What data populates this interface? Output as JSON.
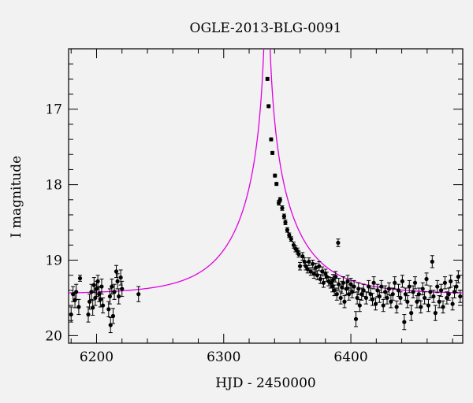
{
  "chart_data": {
    "type": "scatter",
    "title": "OGLE-2013-BLG-0091",
    "xlabel": "HJD - 2450000",
    "ylabel": "I magnitude",
    "xlim": [
      6178,
      6488
    ],
    "ylim": [
      16.2,
      20.1
    ],
    "y_inverted": true,
    "x_ticks": [
      6200,
      6300,
      6400
    ],
    "y_ticks": [
      17,
      18,
      19,
      20
    ],
    "grid": false,
    "colors": {
      "points": "#000000",
      "model": "#e000e0",
      "background": "#f2f2f2"
    },
    "model": {
      "t0": 6334.0,
      "u0": 0.00545,
      "tE": 50.0,
      "base_mag": 19.45,
      "fs": 1.0
    },
    "series": [
      {
        "points": [
          [
            6180.0,
            19.72,
            0.1
          ],
          [
            6181.5,
            19.45,
            0.1
          ],
          [
            6183.0,
            19.53,
            0.1
          ],
          [
            6184.0,
            19.42,
            0.1
          ],
          [
            6186.0,
            19.62,
            0.1
          ],
          [
            6187.0,
            19.24,
            0.04
          ],
          [
            6193.5,
            19.72,
            0.1
          ],
          [
            6194.5,
            19.55,
            0.1
          ],
          [
            6196.0,
            19.42,
            0.1
          ],
          [
            6197.0,
            19.63,
            0.1
          ],
          [
            6198.0,
            19.33,
            0.1
          ],
          [
            6199.0,
            19.5,
            0.1
          ],
          [
            6200.0,
            19.38,
            0.1
          ],
          [
            6201.0,
            19.28,
            0.08
          ],
          [
            6202.0,
            19.45,
            0.1
          ],
          [
            6203.0,
            19.52,
            0.1
          ],
          [
            6204.0,
            19.35,
            0.1
          ],
          [
            6205.0,
            19.6,
            0.1
          ],
          [
            6209.5,
            19.65,
            0.1
          ],
          [
            6210.5,
            19.48,
            0.1
          ],
          [
            6211.0,
            19.86,
            0.1
          ],
          [
            6212.0,
            19.35,
            0.1
          ],
          [
            6213.0,
            19.74,
            0.1
          ],
          [
            6214.0,
            19.42,
            0.1
          ],
          [
            6215.5,
            19.15,
            0.08
          ],
          [
            6216.5,
            19.28,
            0.1
          ],
          [
            6217.5,
            19.48,
            0.1
          ],
          [
            6219.0,
            19.23,
            0.1
          ],
          [
            6220.0,
            19.38,
            0.1
          ],
          [
            6233.0,
            19.45,
            0.1
          ],
          [
            6334.4,
            16.6,
            0.02
          ],
          [
            6335.3,
            16.96,
            0.02
          ],
          [
            6337.3,
            17.4,
            0.02
          ],
          [
            6338.3,
            17.58,
            0.02
          ],
          [
            6340.3,
            17.88,
            0.02
          ],
          [
            6341.5,
            17.99,
            0.02
          ],
          [
            6343.3,
            18.24,
            0.03
          ],
          [
            6344.3,
            18.2,
            0.03
          ],
          [
            6346.0,
            18.31,
            0.03
          ],
          [
            6347.5,
            18.42,
            0.03
          ],
          [
            6348.5,
            18.5,
            0.03
          ],
          [
            6350.0,
            18.6,
            0.03
          ],
          [
            6351.5,
            18.67,
            0.03
          ],
          [
            6353.0,
            18.72,
            0.03
          ],
          [
            6355.0,
            18.8,
            0.04
          ],
          [
            6356.5,
            18.85,
            0.04
          ],
          [
            6358.0,
            18.88,
            0.04
          ],
          [
            6359.0,
            18.92,
            0.04
          ],
          [
            6360.0,
            19.08,
            0.05
          ],
          [
            6362.0,
            18.95,
            0.05
          ],
          [
            6363.5,
            19.02,
            0.05
          ],
          [
            6364.5,
            19.08,
            0.05
          ],
          [
            6366.0,
            19.12,
            0.05
          ],
          [
            6367.0,
            19.02,
            0.05
          ],
          [
            6368.5,
            19.15,
            0.05
          ],
          [
            6370.0,
            19.05,
            0.05
          ],
          [
            6371.0,
            19.18,
            0.06
          ],
          [
            6372.5,
            19.1,
            0.06
          ],
          [
            6373.5,
            19.2,
            0.06
          ],
          [
            6375.0,
            19.08,
            0.06
          ],
          [
            6376.0,
            19.25,
            0.06
          ],
          [
            6377.5,
            19.15,
            0.06
          ],
          [
            6378.5,
            19.3,
            0.06
          ],
          [
            6380.0,
            19.18,
            0.06
          ],
          [
            6381.0,
            19.22,
            0.06
          ],
          [
            6382.5,
            19.28,
            0.06
          ],
          [
            6384.0,
            19.3,
            0.07
          ],
          [
            6385.5,
            19.35,
            0.07
          ],
          [
            6386.0,
            19.26,
            0.07
          ],
          [
            6387.0,
            19.4,
            0.07
          ],
          [
            6388.0,
            19.22,
            0.07
          ],
          [
            6389.0,
            19.45,
            0.08
          ],
          [
            6390.0,
            18.77,
            0.05
          ],
          [
            6390.5,
            19.32,
            0.08
          ],
          [
            6392.0,
            19.5,
            0.08
          ],
          [
            6393.0,
            19.36,
            0.08
          ],
          [
            6394.0,
            19.3,
            0.08
          ],
          [
            6395.0,
            19.55,
            0.08
          ],
          [
            6396.5,
            19.38,
            0.08
          ],
          [
            6397.5,
            19.28,
            0.08
          ],
          [
            6398.5,
            19.45,
            0.08
          ],
          [
            6400.0,
            19.32,
            0.08
          ],
          [
            6401.0,
            19.42,
            0.08
          ],
          [
            6402.5,
            19.35,
            0.08
          ],
          [
            6404.0,
            19.78,
            0.1
          ],
          [
            6405.0,
            19.5,
            0.08
          ],
          [
            6406.0,
            19.38,
            0.08
          ],
          [
            6407.0,
            19.6,
            0.08
          ],
          [
            6408.5,
            19.45,
            0.08
          ],
          [
            6410.0,
            19.4,
            0.08
          ],
          [
            6412.0,
            19.5,
            0.08
          ],
          [
            6414.0,
            19.35,
            0.08
          ],
          [
            6415.5,
            19.45,
            0.08
          ],
          [
            6417.0,
            19.52,
            0.08
          ],
          [
            6418.0,
            19.3,
            0.08
          ],
          [
            6419.5,
            19.58,
            0.08
          ],
          [
            6421.0,
            19.4,
            0.08
          ],
          [
            6422.5,
            19.48,
            0.08
          ],
          [
            6424.0,
            19.35,
            0.08
          ],
          [
            6425.5,
            19.6,
            0.08
          ],
          [
            6427.0,
            19.42,
            0.08
          ],
          [
            6428.5,
            19.5,
            0.08
          ],
          [
            6430.0,
            19.38,
            0.08
          ],
          [
            6431.5,
            19.55,
            0.08
          ],
          [
            6433.0,
            19.45,
            0.08
          ],
          [
            6434.5,
            19.3,
            0.08
          ],
          [
            6436.0,
            19.62,
            0.08
          ],
          [
            6437.5,
            19.4,
            0.08
          ],
          [
            6439.0,
            19.5,
            0.08
          ],
          [
            6440.5,
            19.28,
            0.08
          ],
          [
            6442.0,
            19.82,
            0.1
          ],
          [
            6443.0,
            19.45,
            0.08
          ],
          [
            6444.5,
            19.55,
            0.08
          ],
          [
            6446.0,
            19.35,
            0.08
          ],
          [
            6447.5,
            19.7,
            0.1
          ],
          [
            6449.0,
            19.42,
            0.08
          ],
          [
            6450.5,
            19.3,
            0.08
          ],
          [
            6452.0,
            19.55,
            0.08
          ],
          [
            6453.5,
            19.45,
            0.08
          ],
          [
            6455.0,
            19.62,
            0.08
          ],
          [
            6456.5,
            19.38,
            0.08
          ],
          [
            6458.0,
            19.5,
            0.08
          ],
          [
            6459.5,
            19.25,
            0.08
          ],
          [
            6461.0,
            19.6,
            0.08
          ],
          [
            6462.5,
            19.42,
            0.08
          ],
          [
            6464.0,
            19.02,
            0.08
          ],
          [
            6465.0,
            19.48,
            0.08
          ],
          [
            6466.5,
            19.7,
            0.1
          ],
          [
            6468.0,
            19.35,
            0.08
          ],
          [
            6469.5,
            19.55,
            0.08
          ],
          [
            6471.0,
            19.4,
            0.08
          ],
          [
            6472.5,
            19.62,
            0.08
          ],
          [
            6474.0,
            19.3,
            0.08
          ],
          [
            6475.5,
            19.5,
            0.08
          ],
          [
            6477.0,
            19.45,
            0.08
          ],
          [
            6478.5,
            19.28,
            0.08
          ],
          [
            6480.0,
            19.58,
            0.08
          ],
          [
            6481.5,
            19.42,
            0.08
          ],
          [
            6483.0,
            19.35,
            0.08
          ],
          [
            6484.5,
            19.22,
            0.08
          ],
          [
            6486.0,
            19.48,
            0.08
          ]
        ]
      }
    ]
  }
}
